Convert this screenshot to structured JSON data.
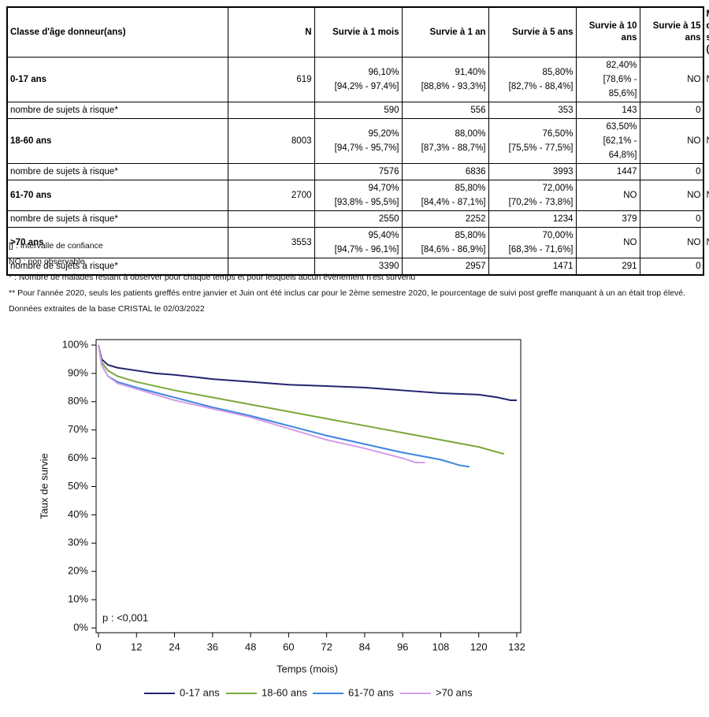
{
  "table": {
    "header": [
      "Classe d'âge donneur(ans)",
      "N",
      "Survie à 1 mois",
      "Survie à 1 an",
      "Survie à 5 ans",
      "Survie à 10 ans",
      "Survie à 15 ans",
      "Médiane de survie (mois)"
    ],
    "groups": [
      {
        "label": "0-17 ans",
        "n": "619",
        "values": [
          "96,10%",
          "91,40%",
          "85,80%",
          "82,40%",
          "NO",
          "NO"
        ],
        "ci": [
          "[94,2% - 97,4%]",
          "[88,8% - 93,3%]",
          "[82,7% - 88,4%]",
          "[78,6% - 85,6%]"
        ],
        "risk_label": "nombre de sujets à risque*",
        "risk": [
          "590",
          "556",
          "353",
          "143",
          "0"
        ]
      },
      {
        "label": "18-60 ans",
        "n": "8003",
        "values": [
          "95,20%",
          "88,00%",
          "76,50%",
          "63,50%",
          "NO",
          "NO"
        ],
        "ci": [
          "[94,7% - 95,7%]",
          "[87,3% - 88,7%]",
          "[75,5% - 77,5%]",
          "[62,1% - 64,8%]"
        ],
        "risk_label": "nombre de sujets à risque*",
        "risk": [
          "7576",
          "6836",
          "3993",
          "1447",
          "0"
        ]
      },
      {
        "label": "61-70 ans",
        "n": "2700",
        "values": [
          "94,70%",
          "85,80%",
          "72,00%",
          "NO",
          "NO",
          "NO"
        ],
        "ci": [
          "[93,8% - 95,5%]",
          "[84,4% - 87,1%]",
          "[70,2% - 73,8%]"
        ],
        "risk_label": "nombre de sujets à risque*",
        "risk": [
          "2550",
          "2252",
          "1234",
          "379",
          "0"
        ]
      },
      {
        "label": ">70 ans",
        "n": "3553",
        "values": [
          "95,40%",
          "85,80%",
          "70,00%",
          "NO",
          "NO",
          "NO"
        ],
        "ci": [
          "[94,7% - 96,1%]",
          "[84,6% - 86,9%]",
          "[68,3% - 71,6%]"
        ],
        "risk_label": "nombre de sujets à risque*",
        "risk": [
          "3390",
          "2957",
          "1471",
          "291",
          "0"
        ]
      }
    ]
  },
  "notes": [
    "[] : Intervalle de confiance",
    "NO : non observable",
    "* : Nombre de malades restant à observer pour chaque temps et pour lesquels aucun évènement n'est survenu",
    "** Pour l'année 2020, seuls les patients greffés entre janvier et Juin ont été inclus car pour le 2ème semestre 2020, le pourcentage de suivi post greffe manquant à un an était trop élevé.",
    "Données extraites de la base CRISTAL le 02/03/2022"
  ],
  "chart_data": {
    "type": "line",
    "x_label": "Temps (mois)",
    "y_label": "Taux de survie",
    "annotation": "p : <0,001",
    "xlim": [
      0,
      132
    ],
    "xticks": [
      0,
      12,
      24,
      36,
      48,
      60,
      72,
      84,
      96,
      108,
      120,
      132
    ],
    "ylim": [
      0,
      100
    ],
    "yticks": [
      {
        "value": 0,
        "label": "0%"
      },
      {
        "value": 10,
        "label": "10%"
      },
      {
        "value": 20,
        "label": "20%"
      },
      {
        "value": 30,
        "label": "30%"
      },
      {
        "value": 40,
        "label": "40%"
      },
      {
        "value": 50,
        "label": "50%"
      },
      {
        "value": 60,
        "label": "60%"
      },
      {
        "value": 70,
        "label": "70%"
      },
      {
        "value": 80,
        "label": "80%"
      },
      {
        "value": 90,
        "label": "90%"
      },
      {
        "value": 100,
        "label": "100%"
      }
    ],
    "series": [
      {
        "name": "0-17 ans",
        "color": "#23236e",
        "x": [
          0,
          1,
          3,
          6,
          12,
          18,
          24,
          36,
          48,
          60,
          72,
          84,
          96,
          108,
          120,
          126,
          130,
          132
        ],
        "values": [
          100,
          95,
          93,
          92,
          91,
          90,
          89.5,
          88,
          87,
          86,
          85.5,
          85,
          84,
          83,
          82.5,
          81.5,
          80.5,
          80.5
        ]
      },
      {
        "name": "18-60 ans",
        "color": "#7aa83a",
        "x": [
          0,
          1,
          3,
          6,
          12,
          24,
          36,
          48,
          60,
          72,
          84,
          96,
          108,
          120,
          128
        ],
        "values": [
          100,
          94,
          91,
          89,
          87,
          84,
          81.5,
          79,
          76.5,
          74,
          71.5,
          69,
          66.5,
          64,
          61.5
        ]
      },
      {
        "name": "61-70 ans",
        "color": "#3d85e0",
        "x": [
          0,
          1,
          3,
          6,
          12,
          24,
          36,
          48,
          60,
          72,
          84,
          96,
          108,
          114,
          117
        ],
        "values": [
          100,
          93,
          89,
          87,
          85,
          81.5,
          78,
          75,
          71.5,
          68,
          65,
          62,
          59.5,
          57.5,
          57
        ]
      },
      {
        "name": ">70 ans",
        "color": "#d49de8",
        "x": [
          0,
          1,
          3,
          6,
          12,
          24,
          36,
          48,
          60,
          72,
          84,
          96,
          100,
          103
        ],
        "values": [
          100,
          93,
          89,
          86.5,
          84.5,
          80.5,
          77.5,
          74.5,
          70.5,
          66.5,
          63.5,
          60,
          58.5,
          58.5
        ]
      }
    ]
  }
}
